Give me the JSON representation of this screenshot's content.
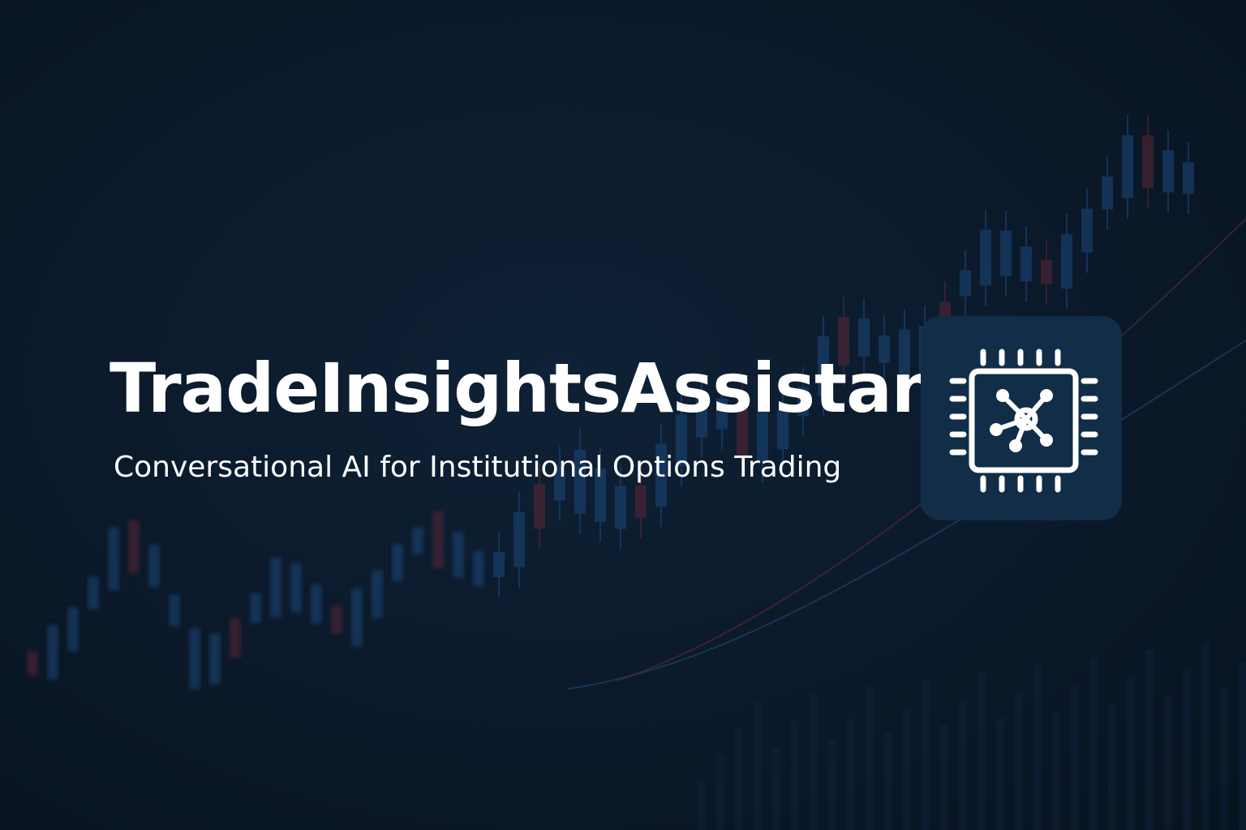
{
  "header": {
    "title": "TradeInsightsAssistant",
    "subtitle": "Conversational AI for Institutional Options Trading"
  }
}
